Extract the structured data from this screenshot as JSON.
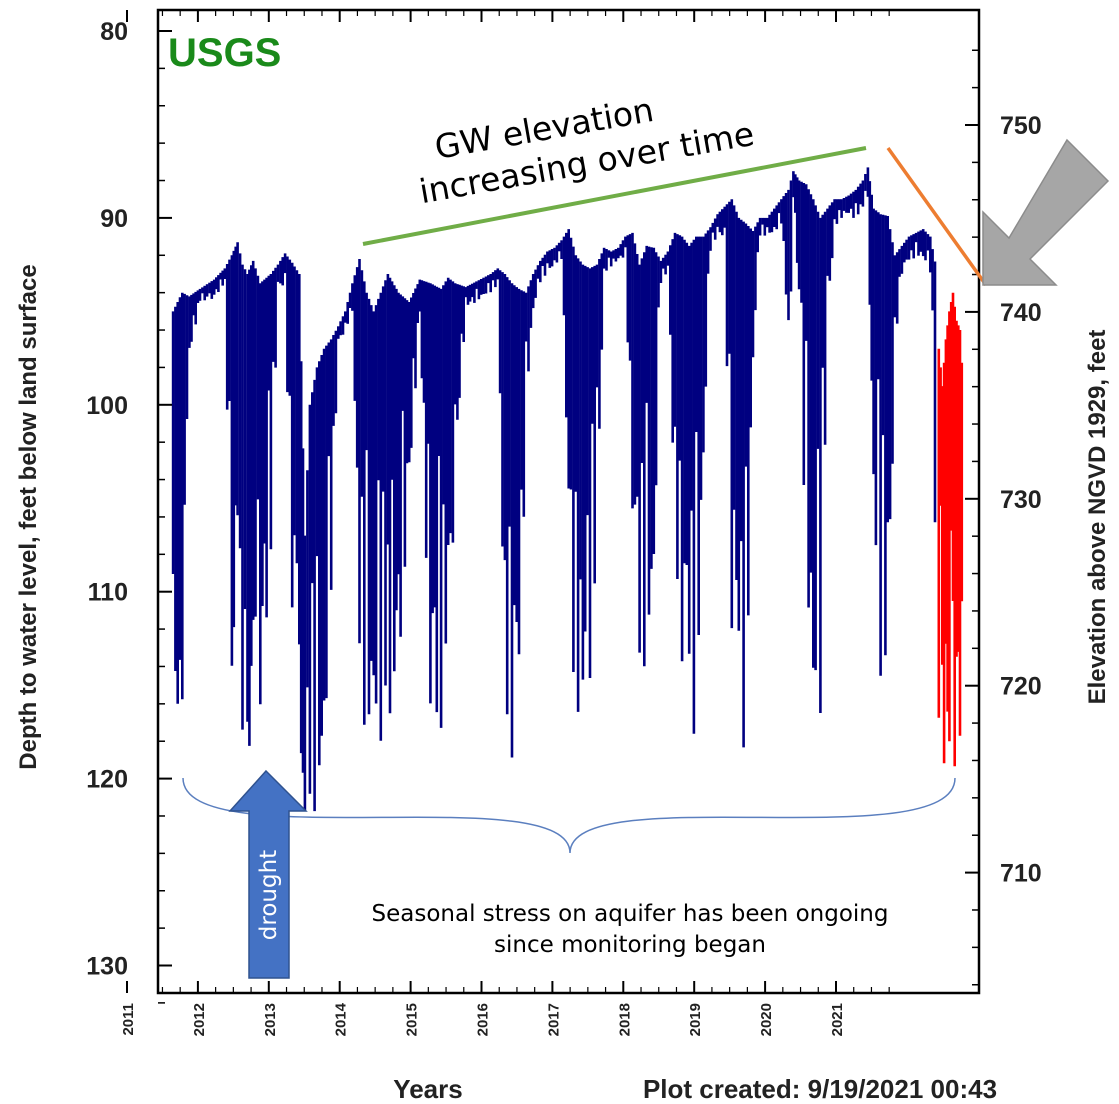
{
  "chart_data": {
    "type": "line",
    "watermark": "USGS",
    "xlabel": "Years",
    "ylabel_left": "Depth to water level, feet below land surface",
    "ylabel_right": "Elevation above NGVD 1929, feet",
    "footer": "Plot created: 9/19/2021 00:43",
    "x_ticks": [
      "2011",
      "2012",
      "2013",
      "2014",
      "2015",
      "2016",
      "2017",
      "2018",
      "2019",
      "2020",
      "2021"
    ],
    "y_left_ticks": [
      80,
      90,
      100,
      110,
      120,
      130
    ],
    "y_right_ticks": [
      750,
      740,
      730,
      720,
      710
    ],
    "y_left_range": [
      80,
      132.5
    ],
    "x_range": [
      2010.4,
      2021.9
    ],
    "y_left_inverted": true,
    "grid": false,
    "colors": {
      "approved": "#000080",
      "provisional": "#ff0000",
      "trend_up": "#70ad47",
      "trend_down": "#ed7d31",
      "arrow_gray": "#a6a6a6",
      "arrow_blue": "#4472c4",
      "usgs_green": "#1a8a1a"
    },
    "series": [
      {
        "color": "#000080",
        "envelope": [
          [
            2010.62,
            95.0,
            116.0
          ],
          [
            2010.75,
            94.0,
            116.0
          ],
          [
            2010.85,
            94.2,
            97.5
          ],
          [
            2011.0,
            93.8,
            94.5
          ],
          [
            2011.2,
            93.3,
            94.3
          ],
          [
            2011.35,
            92.7,
            93.5
          ],
          [
            2011.45,
            92.0,
            114.0
          ],
          [
            2011.53,
            91.3,
            117.0
          ],
          [
            2011.6,
            92.5,
            118.0
          ],
          [
            2011.67,
            93.0,
            121.0
          ],
          [
            2011.75,
            92.3,
            113.0
          ],
          [
            2011.85,
            93.5,
            117.5
          ],
          [
            2012.0,
            93.0,
            108.0
          ],
          [
            2012.1,
            92.5,
            94.0
          ],
          [
            2012.2,
            91.9,
            93.5
          ],
          [
            2012.3,
            92.4,
            111.0
          ],
          [
            2012.4,
            93.0,
            117.0
          ],
          [
            2012.48,
            107.0,
            122.5
          ],
          [
            2012.55,
            100.0,
            123.0
          ],
          [
            2012.65,
            98.0,
            122.0
          ],
          [
            2012.75,
            97.0,
            120.0
          ],
          [
            2012.85,
            96.5,
            110.0
          ],
          [
            2012.95,
            95.8,
            96.8
          ],
          [
            2013.05,
            95.0,
            96.0
          ],
          [
            2013.15,
            93.5,
            95.0
          ],
          [
            2013.25,
            92.2,
            116.0
          ],
          [
            2013.35,
            94.0,
            118.0
          ],
          [
            2013.45,
            95.0,
            117.5
          ],
          [
            2013.55,
            94.0,
            118.5
          ],
          [
            2013.65,
            93.0,
            117.0
          ],
          [
            2013.8,
            94.0,
            115.0
          ],
          [
            2013.95,
            94.5,
            105.0
          ],
          [
            2014.1,
            93.3,
            95.2
          ],
          [
            2014.25,
            93.5,
            117.0
          ],
          [
            2014.4,
            93.8,
            117.5
          ],
          [
            2014.5,
            93.2,
            115.0
          ],
          [
            2014.6,
            93.5,
            104.0
          ],
          [
            2014.75,
            93.7,
            94.8
          ],
          [
            2014.9,
            93.4,
            94.5
          ],
          [
            2015.0,
            93.2,
            94.2
          ],
          [
            2015.1,
            93.0,
            94.0
          ],
          [
            2015.2,
            92.7,
            93.7
          ],
          [
            2015.3,
            93.0,
            115.5
          ],
          [
            2015.4,
            93.5,
            119.0
          ],
          [
            2015.5,
            93.8,
            118.0
          ],
          [
            2015.6,
            94.0,
            100.0
          ],
          [
            2015.7,
            93.0,
            95.0
          ],
          [
            2015.8,
            92.3,
            93.5
          ],
          [
            2015.9,
            91.8,
            93.0
          ],
          [
            2016.0,
            91.6,
            92.5
          ],
          [
            2016.1,
            91.2,
            92.2
          ],
          [
            2016.2,
            90.6,
            109.0
          ],
          [
            2016.3,
            92.0,
            117.0
          ],
          [
            2016.4,
            92.5,
            116.0
          ],
          [
            2016.5,
            92.7,
            116.5
          ],
          [
            2016.6,
            92.5,
            107.0
          ],
          [
            2016.7,
            91.6,
            93.0
          ],
          [
            2016.8,
            91.8,
            92.6
          ],
          [
            2016.9,
            91.6,
            92.4
          ],
          [
            2017.0,
            91.0,
            92.0
          ],
          [
            2017.1,
            90.8,
            106.0
          ],
          [
            2017.2,
            92.5,
            116.0
          ],
          [
            2017.3,
            91.5,
            113.5
          ],
          [
            2017.4,
            91.6,
            111.0
          ],
          [
            2017.5,
            92.3,
            93.5
          ],
          [
            2017.6,
            91.8,
            93.0
          ],
          [
            2017.7,
            90.8,
            107.0
          ],
          [
            2017.8,
            91.0,
            114.0
          ],
          [
            2017.9,
            91.5,
            117.5
          ],
          [
            2018.0,
            91.0,
            117.8
          ],
          [
            2018.1,
            91.0,
            104.0
          ],
          [
            2018.2,
            90.5,
            91.8
          ],
          [
            2018.3,
            89.8,
            91.0
          ],
          [
            2018.4,
            89.4,
            91.0
          ],
          [
            2018.5,
            89.0,
            112.0
          ],
          [
            2018.6,
            90.0,
            118.0
          ],
          [
            2018.7,
            90.3,
            118.5
          ],
          [
            2018.8,
            90.7,
            98.0
          ],
          [
            2018.9,
            90.0,
            91.0
          ],
          [
            2019.0,
            90.0,
            91.0
          ],
          [
            2019.1,
            89.5,
            90.8
          ],
          [
            2019.2,
            89.0,
            90.3
          ],
          [
            2019.3,
            88.5,
            98.0
          ],
          [
            2019.37,
            87.5,
            90.0
          ],
          [
            2019.45,
            88.0,
            95.0
          ],
          [
            2019.55,
            88.2,
            109.0
          ],
          [
            2019.65,
            89.0,
            117.0
          ],
          [
            2019.75,
            90.0,
            117.5
          ],
          [
            2019.85,
            89.5,
            96.0
          ],
          [
            2019.95,
            89.0,
            90.5
          ],
          [
            2020.05,
            89.0,
            90.0
          ],
          [
            2020.15,
            88.8,
            90.0
          ],
          [
            2020.25,
            88.5,
            90.0
          ],
          [
            2020.35,
            88.0,
            89.5
          ],
          [
            2020.42,
            87.3,
            89.0
          ],
          [
            2020.5,
            89.5,
            106.0
          ],
          [
            2020.6,
            89.8,
            115.0
          ],
          [
            2020.7,
            89.9,
            116.8
          ],
          [
            2020.8,
            92.0,
            97.0
          ],
          [
            2020.9,
            91.5,
            93.0
          ],
          [
            2021.0,
            91.0,
            92.5
          ],
          [
            2021.1,
            90.8,
            92.0
          ],
          [
            2021.2,
            90.6,
            92.2
          ],
          [
            2021.3,
            91.0,
            93.0
          ],
          [
            2021.4,
            93.0,
            114.5
          ]
        ]
      },
      {
        "color": "#ff0000",
        "envelope": [
          [
            2021.42,
            97.0,
            117.0
          ],
          [
            2021.47,
            99.0,
            119.0
          ],
          [
            2021.52,
            96.5,
            122.0
          ],
          [
            2021.57,
            95.0,
            118.0
          ],
          [
            2021.62,
            94.0,
            120.0
          ],
          [
            2021.67,
            95.5,
            119.5
          ],
          [
            2021.72,
            96.0,
            118.0
          ],
          [
            2021.77,
            99.5,
            118.5
          ]
        ]
      }
    ],
    "annotations": {
      "trend_label": [
        "GW elevation",
        "increasing  over time"
      ],
      "drought_label": "drought",
      "seasonal_label": [
        "Seasonal stress on aquifer has been ongoing",
        "since monitoring began"
      ]
    }
  }
}
